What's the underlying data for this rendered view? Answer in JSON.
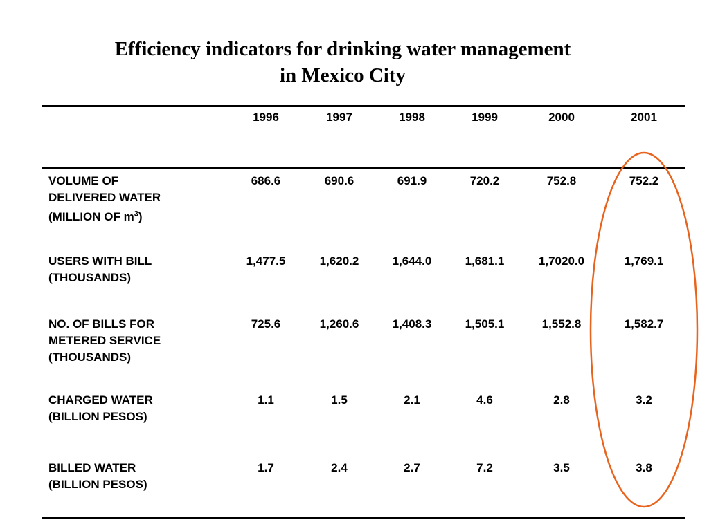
{
  "title": {
    "line1": "Efficiency indicators for drinking water management",
    "line2": "in Mexico City"
  },
  "table": {
    "years": [
      "1996",
      "1997",
      "1998",
      "1999",
      "2000",
      "2001"
    ],
    "rows": [
      {
        "label_lines": [
          "VOLUME OF",
          "DELIVERED WATER"
        ],
        "unit_prefix": "(MILLION OF m",
        "unit_sup": "3",
        "unit_suffix": ")",
        "values": [
          "686.6",
          "690.6",
          "691.9",
          "720.2",
          "752.8",
          "752.2"
        ]
      },
      {
        "label_lines": [
          "USERS WITH BILL",
          "(THOUSANDS)"
        ],
        "values": [
          "1,477.5",
          "1,620.2",
          "1,644.0",
          "1,681.1",
          "1,7020.0",
          "1,769.1"
        ]
      },
      {
        "label_lines": [
          "NO. OF BILLS FOR",
          "METERED SERVICE",
          "(THOUSANDS)"
        ],
        "values": [
          "725.6",
          "1,260.6",
          "1,408.3",
          "1,505.1",
          "1,552.8",
          "1,582.7"
        ]
      },
      {
        "label_lines": [
          "CHARGED WATER",
          "(BILLION PESOS)"
        ],
        "values": [
          "1.1",
          "1.5",
          "2.1",
          "4.6",
          "2.8",
          "3.2"
        ]
      },
      {
        "label_lines": [
          "BILLED WATER",
          "(BILLION PESOS)"
        ],
        "values": [
          "1.7",
          "2.4",
          "2.7",
          "7.2",
          "3.5",
          "3.8"
        ]
      }
    ]
  },
  "highlight": {
    "column": "2001",
    "color": "#e8641e"
  }
}
